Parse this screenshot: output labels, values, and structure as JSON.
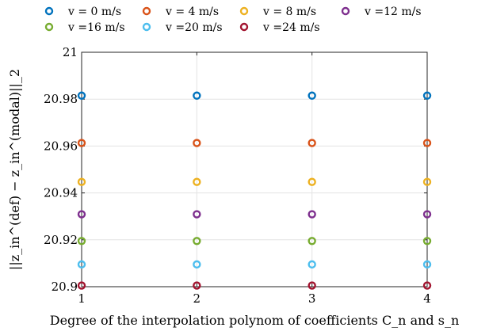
{
  "chart_data": {
    "type": "scatter",
    "title": "",
    "xlabel": "Degree of the interpolation polynom of coefficients C_n and s_n",
    "ylabel": "||z_in^(def) − z_in^(modal)||_2",
    "x": [
      1,
      2,
      3,
      4
    ],
    "xlim": [
      1,
      4
    ],
    "ylim": [
      20.9,
      21
    ],
    "xticks": [
      1,
      2,
      3,
      4
    ],
    "yticks": [
      20.9,
      20.92,
      20.94,
      20.96,
      20.98,
      21
    ],
    "ytick_labels": [
      "20.9",
      "20.92",
      "20.94",
      "20.96",
      "20.98",
      "21"
    ],
    "grid": true,
    "legend_position": "top",
    "series": [
      {
        "name": "v = 0 m/s",
        "color": "#0072BD",
        "values": [
          20.9815,
          20.9815,
          20.9815,
          20.9815
        ]
      },
      {
        "name": "v = 4 m/s",
        "color": "#D95319",
        "values": [
          20.9613,
          20.9613,
          20.9613,
          20.9613
        ]
      },
      {
        "name": "v = 8 m/s",
        "color": "#EDB120",
        "values": [
          20.9447,
          20.9447,
          20.9447,
          20.9447
        ]
      },
      {
        "name": "v =12 m/s",
        "color": "#7E2F8E",
        "values": [
          20.9309,
          20.9309,
          20.9309,
          20.9309
        ]
      },
      {
        "name": "v =16 m/s",
        "color": "#77AC30",
        "values": [
          20.9195,
          20.9195,
          20.9195,
          20.9195
        ]
      },
      {
        "name": "v =20 m/s",
        "color": "#4DBEEE",
        "values": [
          20.9095,
          20.9095,
          20.9095,
          20.9095
        ]
      },
      {
        "name": "v =24 m/s",
        "color": "#A2142F",
        "values": [
          20.9005,
          20.9005,
          20.9005,
          20.9005
        ]
      }
    ]
  }
}
